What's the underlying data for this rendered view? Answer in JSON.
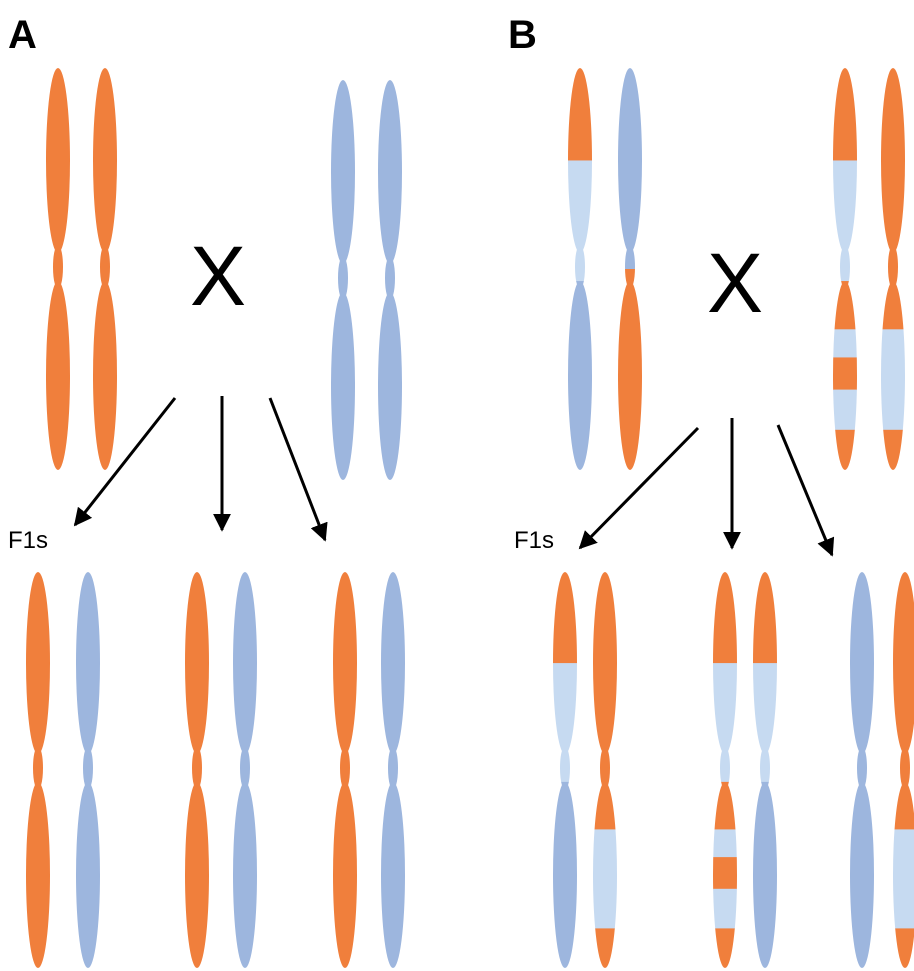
{
  "panels": [
    {
      "label": "A",
      "cross_symbol": "X",
      "offspring_label": "F1s"
    },
    {
      "label": "B",
      "cross_symbol": "X",
      "offspring_label": "F1s"
    }
  ]
}
